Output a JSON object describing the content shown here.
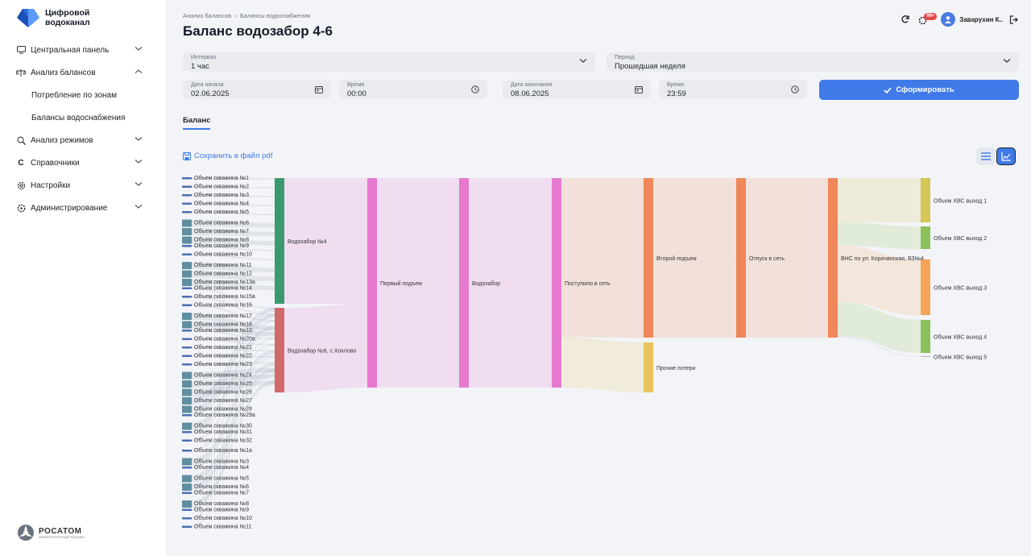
{
  "app": {
    "name": "Цифровой водоканал",
    "footer_brand": "РОСАТОМ",
    "footer_sub": "ИНФРАСТРУКТУРНЫЕ РЕШЕНИЯ"
  },
  "sidebar": {
    "items": [
      {
        "label": "Центральная панель",
        "icon": "monitor-icon"
      },
      {
        "label": "Анализ балансов",
        "icon": "balance-icon",
        "expanded": true,
        "children": [
          "Потребление по зонам",
          "Балансы водоснабжения"
        ]
      },
      {
        "label": "Анализ режимов",
        "icon": "search-chart-icon"
      },
      {
        "label": "Справочники",
        "icon": "reference-icon"
      },
      {
        "label": "Настройки",
        "icon": "gear-icon"
      },
      {
        "label": "Администрирование",
        "icon": "admin-icon"
      }
    ]
  },
  "breadcrumb": [
    "Анализ балансов",
    "Балансы водоснабжения"
  ],
  "page_title": "Баланс водозабор 4-6",
  "header": {
    "notifications_badge": "99+",
    "user": "Заварухин К.."
  },
  "filters": {
    "interval": {
      "label": "Интервал",
      "value": "1 час"
    },
    "period": {
      "label": "Период",
      "value": "Прошедшая неделя"
    },
    "start_date": {
      "label": "Дата начала",
      "value": "02.06.2025"
    },
    "start_time": {
      "label": "Время",
      "value": "00:00"
    },
    "end_date": {
      "label": "Дата окончания",
      "value": "08.06.2025"
    },
    "end_time": {
      "label": "Время",
      "value": "23:59"
    },
    "submit": "Сформировать"
  },
  "tabs": [
    "Баланс"
  ],
  "save_pdf": "Сохранить в файл pdf",
  "colors": {
    "accent": "#3f7ae8",
    "badge": "#e5484d"
  },
  "chart_data": {
    "type": "sankey",
    "nodes": [
      {
        "name": "Водозабор №4",
        "color": "#3a9a6e"
      },
      {
        "name": "Водозабор №6, с.Хохлово",
        "color": "#d06a6a"
      },
      {
        "name": "Первый подъем",
        "color": "#e57ad0"
      },
      {
        "name": "Водозабор",
        "color": "#e57ad0"
      },
      {
        "name": "Поступило в сеть",
        "color": "#e57ad0"
      },
      {
        "name": "Второй подъем",
        "color": "#f0875a"
      },
      {
        "name": "Прочие потери",
        "color": "#ebc35c"
      },
      {
        "name": "Отпуск в сеть",
        "color": "#f0875a"
      },
      {
        "name": "ВНС по ул. Корочанская, ВЗ№4",
        "color": "#f0875a"
      },
      {
        "name": "Объем ХВС выход 1",
        "color": "#d6c655"
      },
      {
        "name": "Объем ХВС выход 2",
        "color": "#8cc05a"
      },
      {
        "name": "Объем ХВС выход 3",
        "color": "#f3a456"
      },
      {
        "name": "Объем ХВС выход 4",
        "color": "#8cc05a"
      },
      {
        "name": "Объем ХВС выход 5",
        "color": "#b0b8c4"
      }
    ],
    "wells_group_1": [
      "Объем скважина №1",
      "Объем скважина №2",
      "Объем скважина №3",
      "Объем скважина №4",
      "Объем скважина №5",
      "Объем скважина №6",
      "Объем скважина №7",
      "Объем скважина №8",
      "Объем скважина №9",
      "Объем скважина №10",
      "Объем скважина №11",
      "Объем скважина №12",
      "Объем скважина №13а",
      "Объем скважина №14",
      "Объем скважина №15а",
      "Объем скважина №16",
      "Объем скважина №17",
      "Объем скважина №18",
      "Объем скважина №19",
      "Объем скважина №20а",
      "Объем скважина №21",
      "Объем скважина №22",
      "Объем скважина №23",
      "Объем скважина №24",
      "Объем скважина №25",
      "Объем скважина №26",
      "Объем скважина №27",
      "Объем скважина №28",
      "Объем скважина №29а",
      "Объем скважина №30",
      "Объем скважина №31",
      "Объем скважина №32"
    ],
    "wells_group_2": [
      "Объем скважина №1а",
      "Объем скважина №3",
      "Объем скважина №4",
      "Объем скважина №5",
      "Объем скважина №6",
      "Объем скважина №7",
      "Объем скважина №8",
      "Объем скважина №9",
      "Объем скважина №10",
      "Объем скважина №11"
    ],
    "flows": [
      {
        "source": "Водозабор №4",
        "target": "Первый подъем",
        "value": 60
      },
      {
        "source": "Водозабор №6, с.Хохлово",
        "target": "Первый подъем",
        "value": 40
      },
      {
        "source": "Первый подъем",
        "target": "Водозабор",
        "value": 100
      },
      {
        "source": "Водозабор",
        "target": "Поступило в сеть",
        "value": 100
      },
      {
        "source": "Поступило в сеть",
        "target": "Второй подъем",
        "value": 76
      },
      {
        "source": "Поступило в сеть",
        "target": "Прочие потери",
        "value": 24
      },
      {
        "source": "Второй подъем",
        "target": "Отпуск в сеть",
        "value": 76
      },
      {
        "source": "Отпуск в сеть",
        "target": "ВНС по ул. Корочанская, ВЗ№4",
        "value": 76
      },
      {
        "source": "ВНС по ул. Корочанская, ВЗ№4",
        "target": "Объем ХВС выход 1",
        "value": 21
      },
      {
        "source": "ВНС по ул. Корочанская, ВЗ№4",
        "target": "Объем ХВС выход 2",
        "value": 11
      },
      {
        "source": "ВНС по ул. Корочанская, ВЗ№4",
        "target": "Объем ХВС выход 3",
        "value": 27
      },
      {
        "source": "ВНС по ул. Корочанская, ВЗ№4",
        "target": "Объем ХВС выход 4",
        "value": 16
      },
      {
        "source": "ВНС по ул. Корочанская, ВЗ№4",
        "target": "Объем ХВС выход 5",
        "value": 1
      }
    ]
  }
}
